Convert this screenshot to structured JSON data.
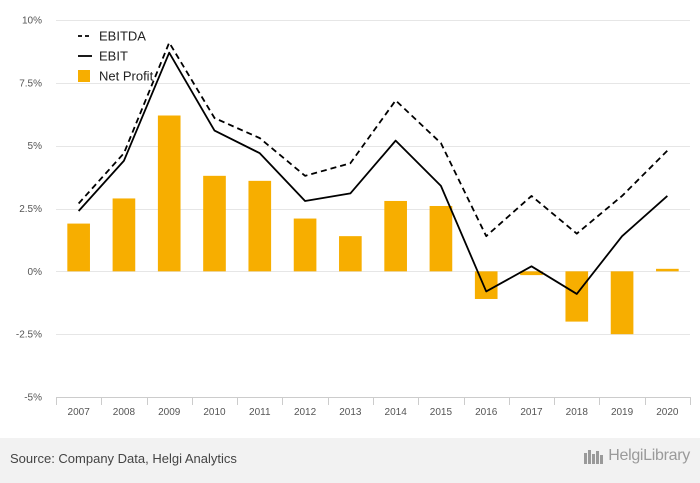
{
  "chart_data": {
    "type": "bar",
    "categories": [
      "2007",
      "2008",
      "2009",
      "2010",
      "2011",
      "2012",
      "2013",
      "2014",
      "2015",
      "2016",
      "2017",
      "2018",
      "2019",
      "2020"
    ],
    "series": [
      {
        "name": "EBITDA",
        "kind": "line",
        "style": "dashed",
        "color": "#000000",
        "values": [
          2.7,
          4.7,
          9.1,
          6.1,
          5.3,
          3.8,
          4.3,
          6.8,
          5.1,
          1.4,
          3.0,
          1.5,
          3.0,
          4.8
        ]
      },
      {
        "name": "EBIT",
        "kind": "line",
        "style": "solid",
        "color": "#000000",
        "values": [
          2.4,
          4.4,
          8.7,
          5.6,
          4.7,
          2.8,
          3.1,
          5.2,
          3.4,
          -0.8,
          0.2,
          -0.9,
          1.4,
          3.0
        ]
      },
      {
        "name": "Net Profit",
        "kind": "bar",
        "color": "#F7AE00",
        "values": [
          1.9,
          2.9,
          6.2,
          3.8,
          3.6,
          2.1,
          1.4,
          2.8,
          2.6,
          -1.1,
          -0.15,
          -2.0,
          -2.5,
          0.1
        ]
      }
    ],
    "yticks": [
      "10%",
      "7.5%",
      "5%",
      "2.5%",
      "0%",
      "-2.5%",
      "-5%"
    ],
    "ytick_values": [
      10,
      7.5,
      5,
      2.5,
      0,
      -2.5,
      -5
    ],
    "ylim": [
      -5,
      10
    ],
    "grid": true,
    "legend_position": "top-left"
  },
  "footer": {
    "source": "Source: Company Data, Helgi Analytics",
    "brand": "HelgiLibrary"
  }
}
